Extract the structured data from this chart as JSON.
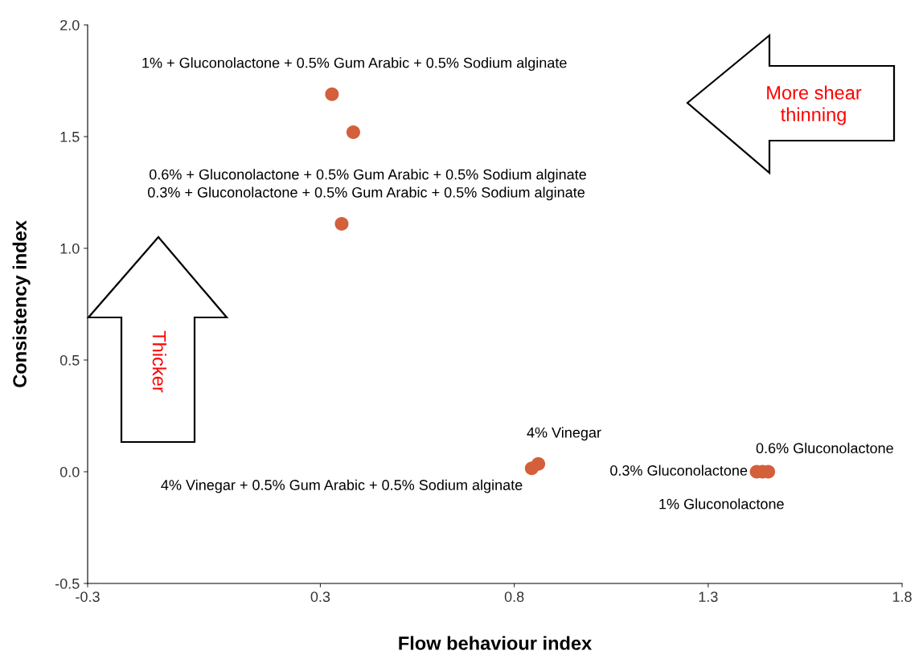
{
  "chart_data": {
    "type": "scatter",
    "xlabel": "Flow behaviour index",
    "ylabel": "Consistency index",
    "xlim": [
      -0.3,
      1.8
    ],
    "xticks": [
      -0.3,
      0.3,
      0.8,
      1.3,
      1.8
    ],
    "ylim": [
      -0.5,
      2.0
    ],
    "yticks": [
      {
        "value": -0.5,
        "label": "-0.5"
      },
      {
        "value": 0.0,
        "label": "0.0"
      },
      {
        "value": 0.5,
        "label": "0.5"
      },
      {
        "value": 1.0,
        "label": "1.0"
      },
      {
        "value": 1.5,
        "label": "1.5"
      },
      {
        "value": 2.0,
        "label": "2.0"
      }
    ],
    "grid": false,
    "legend": false,
    "marker": "circle",
    "series": [
      {
        "name": "1% + Gluconolactone + 0.5% Gum Arabic + 0.5% Sodium alginate",
        "color": "#d35f3b",
        "x": [
          0.33
        ],
        "values": [
          1.69
        ]
      },
      {
        "name": "0.6% + Gluconolactone + 0.5% Gum Arabic + 0.5% Sodium alginate",
        "color": "#d35f3b",
        "x": [
          0.385
        ],
        "values": [
          1.52
        ]
      },
      {
        "name": "0.3% + Gluconolactone + 0.5% Gum Arabic + 0.5% Sodium alginate",
        "color": "#d35f3b",
        "x": [
          0.355
        ],
        "values": [
          1.11
        ]
      },
      {
        "name": "4% Vinegar",
        "color": "#d35f3b",
        "x": [
          0.862
        ],
        "values": [
          0.035
        ]
      },
      {
        "name": "4% Vinegar + 0.5% Gum Arabic + 0.5% Sodium alginate",
        "color": "#d35f3b",
        "x": [
          0.845
        ],
        "values": [
          0.015
        ]
      },
      {
        "name": "0.3% Gluconolactone",
        "color": "#d35f3b",
        "x": [
          1.425
        ],
        "values": [
          0.0
        ]
      },
      {
        "name": "0.6% Gluconolactone",
        "color": "#d35f3b",
        "x": [
          1.44
        ],
        "values": [
          0.0
        ]
      },
      {
        "name": "1% Gluconolactone",
        "color": "#d35f3b",
        "x": [
          1.455
        ],
        "values": [
          0.0
        ]
      }
    ],
    "annotations": [
      "More shear\nthinning",
      "Thicker"
    ]
  }
}
